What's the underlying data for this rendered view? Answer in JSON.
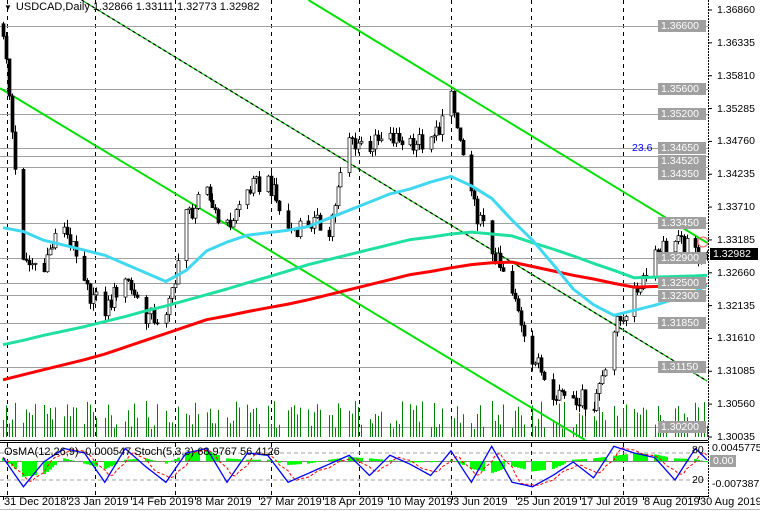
{
  "header": {
    "symbol": "USDCAD,Daily",
    "ohlc": "1.32866 1.33111 1.32773 1.32982"
  },
  "subwindow": {
    "label": "OsMA(12,26,9) -0.000547 Stoch(5,3,3) 68.9767 56.4126",
    "axis_max": "0.0045775",
    "axis_80": "80",
    "axis_zero": "0.00",
    "axis_20": "20",
    "axis_min": "-0.007387"
  },
  "colors": {
    "up_candle": "#ffffff",
    "down_candle": "#000000",
    "ma_fast": "#40d8f0",
    "ma_mid": "#20e0a0",
    "ma_slow": "#ff0000",
    "channel": "#00e000",
    "osma": "#00ff00",
    "stoch_main": "#0000ff",
    "stoch_signal": "#ff0000",
    "level_label": "#a0a0a0",
    "fib": "#0000ff"
  },
  "chart_data": {
    "type": "candlestick",
    "price_axis": {
      "ticks": [
        "1.36860",
        "1.36335",
        "1.35810",
        "1.35285",
        "1.34760",
        "1.34235",
        "1.33710",
        "1.33185",
        "1.32660",
        "1.32135",
        "1.31610",
        "1.31085",
        "1.30560",
        "1.30035"
      ],
      "range": [
        1.30035,
        1.3686
      ]
    },
    "x_ticks": [
      {
        "label": "31 Dec 2018",
        "date": "2018-12-31"
      },
      {
        "label": "23 Jan 2019",
        "date": "2019-01-23"
      },
      {
        "label": "14 Feb 2019",
        "date": "2019-02-14"
      },
      {
        "label": "8 Mar 2019",
        "date": "2019-03-08"
      },
      {
        "label": "27 Mar 2019",
        "date": "2019-03-27"
      },
      {
        "label": "18 Apr 2019",
        "date": "2019-04-18"
      },
      {
        "label": "10 May 2019",
        "date": "2019-05-10"
      },
      {
        "label": "3 Jun 2019",
        "date": "2019-06-03"
      },
      {
        "label": "25 Jun 2019",
        "date": "2019-06-25"
      },
      {
        "label": "17 Jul 2019",
        "date": "2019-07-17"
      },
      {
        "label": "8 Aug 2019",
        "date": "2019-08-08"
      },
      {
        "label": "30 Aug 2019",
        "date": "2019-08-30"
      }
    ],
    "levels": [
      "1.36600",
      "1.35600",
      "1.35200",
      "1.34650",
      "1.34520",
      "1.34350",
      "1.33450",
      "1.32900",
      "1.32500",
      "1.32300",
      "1.31850",
      "1.31150",
      "1.30200"
    ],
    "current_price": "1.32982",
    "fib_label": "23.6",
    "weekly_close": [
      1.3654,
      1.3277,
      1.3283,
      1.3344,
      1.3242,
      1.3206,
      1.3261,
      1.3197,
      1.319,
      1.3357,
      1.339,
      1.3337,
      1.3398,
      1.3414,
      1.3334,
      1.3347,
      1.3337,
      1.3478,
      1.347,
      1.3478,
      1.3478,
      1.347,
      1.3542,
      1.3382,
      1.3302,
      1.323,
      1.3133,
      1.3079,
      1.3071,
      1.3055,
      1.3175,
      1.323,
      1.3302,
      1.3315,
      1.3299,
      1.32982
    ],
    "ma_fast": [
      1.3338,
      1.3332,
      1.3318,
      1.331,
      1.3302,
      1.3294,
      1.328,
      1.3266,
      1.3252,
      1.327,
      1.3301,
      1.3315,
      1.3326,
      1.333,
      1.3334,
      1.334,
      1.3353,
      1.3366,
      1.3379,
      1.3392,
      1.34,
      1.3411,
      1.342,
      1.3405,
      1.3385,
      1.335,
      1.3318,
      1.328,
      1.324,
      1.3215,
      1.3198,
      1.3206,
      1.3214,
      1.3224,
      1.3236,
      1.3246
    ],
    "ma_mid": [
      1.3151,
      1.3158,
      1.3166,
      1.3173,
      1.318,
      1.3188,
      1.3196,
      1.3205,
      1.3213,
      1.3222,
      1.3231,
      1.324,
      1.325,
      1.3259,
      1.3269,
      1.3279,
      1.3287,
      1.3295,
      1.3303,
      1.3311,
      1.3319,
      1.3323,
      1.3328,
      1.3331,
      1.3328,
      1.3325,
      1.3314,
      1.3304,
      1.3293,
      1.3281,
      1.327,
      1.3258,
      1.3259,
      1.326,
      1.3261,
      1.3262
    ],
    "ma_slow": [
      1.3095,
      1.3103,
      1.3111,
      1.3119,
      1.3127,
      1.3136,
      1.3147,
      1.3158,
      1.3169,
      1.318,
      1.3191,
      1.3197,
      1.3204,
      1.321,
      1.3216,
      1.3223,
      1.3231,
      1.3239,
      1.3247,
      1.3255,
      1.3263,
      1.3268,
      1.3274,
      1.3279,
      1.3282,
      1.3283,
      1.3276,
      1.3269,
      1.3262,
      1.3256,
      1.3249,
      1.3243,
      1.3244,
      1.3245,
      1.3246,
      1.3246
    ],
    "osma": [
      0.001,
      -0.006,
      -0.005,
      0.001,
      -0.001,
      -0.003,
      0.0005,
      0.001,
      -0.001,
      0.003,
      0.004,
      0.001,
      0.0005,
      0.0005,
      -0.0015,
      -0.001,
      0.0005,
      0.0015,
      0.001,
      0.0003,
      -0.0005,
      -0.0005,
      0.0005,
      -0.003,
      -0.0045,
      -0.002,
      -0.004,
      -0.003,
      0.0005,
      0.001,
      0.002,
      0.003,
      0.0025,
      0.001,
      0.0008,
      -0.0005
    ],
    "stoch_main": [
      70,
      5,
      60,
      90,
      80,
      15,
      90,
      50,
      15,
      80,
      90,
      15,
      80,
      75,
      15,
      35,
      55,
      75,
      30,
      75,
      55,
      30,
      85,
      15,
      95,
      15,
      5,
      30,
      60,
      25,
      95,
      80,
      70,
      20,
      90,
      65
    ],
    "trendlines": [
      {
        "color": "channel",
        "from": {
          "date": "2018-12-30",
          "price": 1.3561
        },
        "to": {
          "date": "2019-07-19",
          "price": 1.2999
        }
      },
      {
        "color": "channel",
        "from": {
          "date": "2019-04-15",
          "price": 1.3702
        },
        "to": {
          "date": "2019-08-30",
          "price": 1.3314
        }
      },
      {
        "color": "dashed",
        "from": {
          "date": "2019-01-27",
          "price": 1.3702
        },
        "to": {
          "date": "2019-08-30",
          "price": 1.3093
        }
      }
    ]
  }
}
